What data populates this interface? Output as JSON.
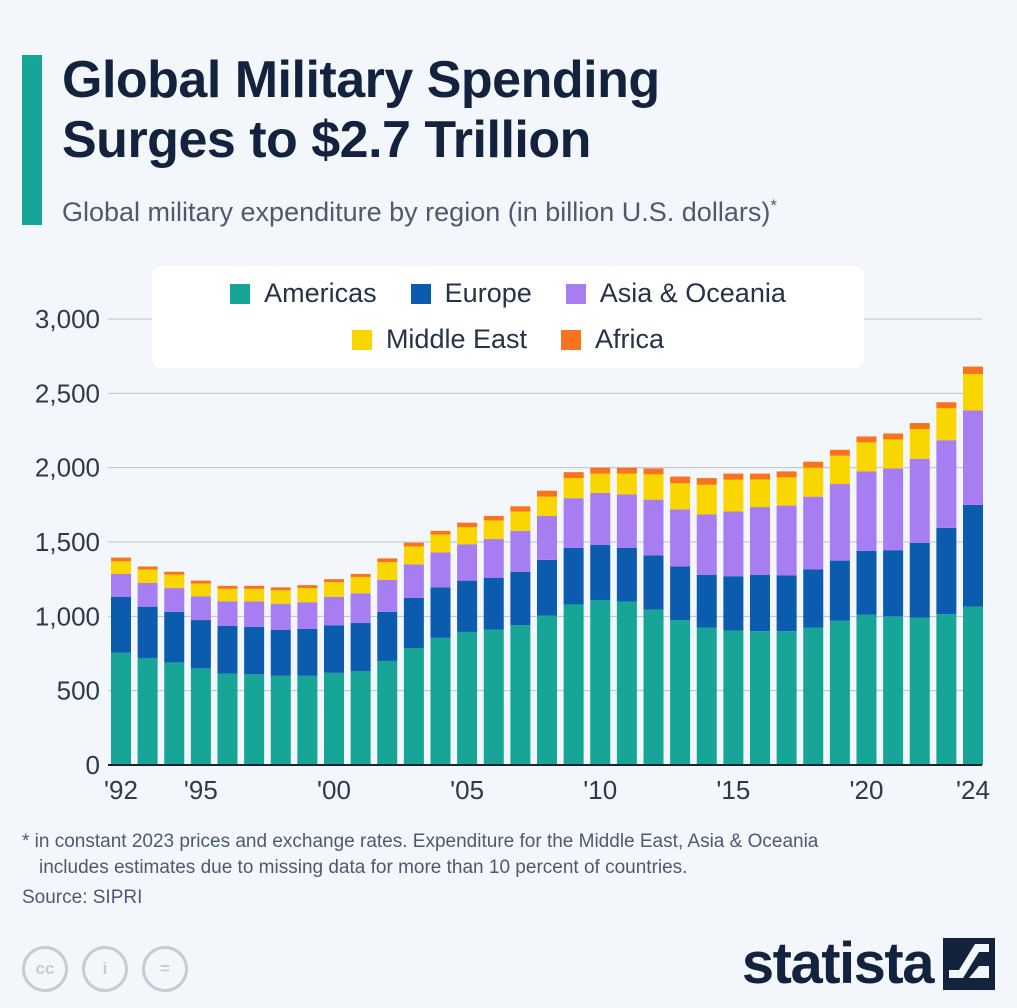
{
  "header": {
    "title_line1": "Global Military Spending",
    "title_line2": "Surges to $2.7 Trillion",
    "subtitle": "Global military expenditure by region (in billion U.S. dollars)",
    "subtitle_mark": "*"
  },
  "colors": {
    "accent": "#16a596",
    "americas": "#16a596",
    "europe": "#0b5cae",
    "asia_oceania": "#a77ef2",
    "middle_east": "#fad600",
    "africa": "#f9731e"
  },
  "chart_data": {
    "type": "bar",
    "stacked": true,
    "title": "Global military expenditure by region (in billion U.S. dollars)",
    "xlabel": "",
    "ylabel": "",
    "ylim": [
      0,
      3000
    ],
    "yticks": [
      0,
      500,
      1000,
      1500,
      2000,
      2500,
      3000
    ],
    "ytick_labels": [
      "0",
      "500",
      "1,000",
      "1,500",
      "2,000",
      "2,500",
      "3,000"
    ],
    "grid": true,
    "legend_position": "top",
    "categories": [
      1992,
      1993,
      1994,
      1995,
      1996,
      1997,
      1998,
      1999,
      2000,
      2001,
      2002,
      2003,
      2004,
      2005,
      2006,
      2007,
      2008,
      2009,
      2010,
      2011,
      2012,
      2013,
      2014,
      2015,
      2016,
      2017,
      2018,
      2019,
      2020,
      2021,
      2022,
      2023,
      2024
    ],
    "xtick_labels": [
      {
        "year": 1992,
        "label": "'92"
      },
      {
        "year": 1995,
        "label": "'95"
      },
      {
        "year": 2000,
        "label": "'00"
      },
      {
        "year": 2005,
        "label": "'05"
      },
      {
        "year": 2010,
        "label": "'10"
      },
      {
        "year": 2015,
        "label": "'15"
      },
      {
        "year": 2020,
        "label": "'20"
      },
      {
        "year": 2024,
        "label": "'24"
      }
    ],
    "series": [
      {
        "name": "Americas",
        "key": "americas",
        "values": [
          755,
          720,
          690,
          650,
          615,
          610,
          600,
          600,
          620,
          630,
          700,
          785,
          855,
          895,
          910,
          940,
          1005,
          1080,
          1110,
          1100,
          1045,
          975,
          925,
          905,
          900,
          900,
          925,
          970,
          1010,
          1000,
          990,
          1015,
          1065
        ]
      },
      {
        "name": "Europe",
        "key": "europe",
        "values": [
          375,
          345,
          340,
          325,
          320,
          320,
          310,
          315,
          320,
          325,
          330,
          340,
          340,
          345,
          350,
          360,
          375,
          380,
          370,
          360,
          365,
          360,
          355,
          365,
          380,
          375,
          390,
          405,
          430,
          445,
          505,
          580,
          685
        ]
      },
      {
        "name": "Asia & Oceania",
        "key": "asia_oceania",
        "values": [
          155,
          160,
          160,
          160,
          165,
          170,
          175,
          180,
          190,
          200,
          215,
          225,
          235,
          245,
          260,
          275,
          295,
          335,
          350,
          360,
          375,
          385,
          405,
          435,
          455,
          470,
          490,
          515,
          535,
          550,
          565,
          590,
          635
        ]
      },
      {
        "name": "Middle East",
        "key": "middle_east",
        "values": [
          85,
          90,
          90,
          85,
          85,
          85,
          90,
          95,
          100,
          110,
          120,
          120,
          120,
          115,
          125,
          130,
          130,
          135,
          130,
          140,
          170,
          175,
          200,
          215,
          185,
          190,
          195,
          190,
          195,
          195,
          200,
          215,
          245
        ]
      },
      {
        "name": "Africa",
        "key": "africa",
        "values": [
          25,
          20,
          20,
          20,
          20,
          20,
          20,
          20,
          20,
          20,
          25,
          25,
          25,
          30,
          30,
          35,
          40,
          40,
          40,
          40,
          40,
          45,
          45,
          40,
          40,
          40,
          40,
          40,
          40,
          40,
          40,
          40,
          50
        ]
      }
    ]
  },
  "footnote": {
    "line1": "* in constant 2023 prices and exchange rates. Expenditure for the Middle East, Asia & Oceania",
    "line2": "includes estimates due to missing data for more than 10 percent of countries."
  },
  "source": "Source: SIPRI",
  "license_icons": [
    {
      "name": "cc-icon",
      "glyph": "cc"
    },
    {
      "name": "attribution-icon",
      "glyph": "i"
    },
    {
      "name": "no-derivatives-icon",
      "glyph": "="
    }
  ],
  "brand": {
    "name": "statista"
  }
}
